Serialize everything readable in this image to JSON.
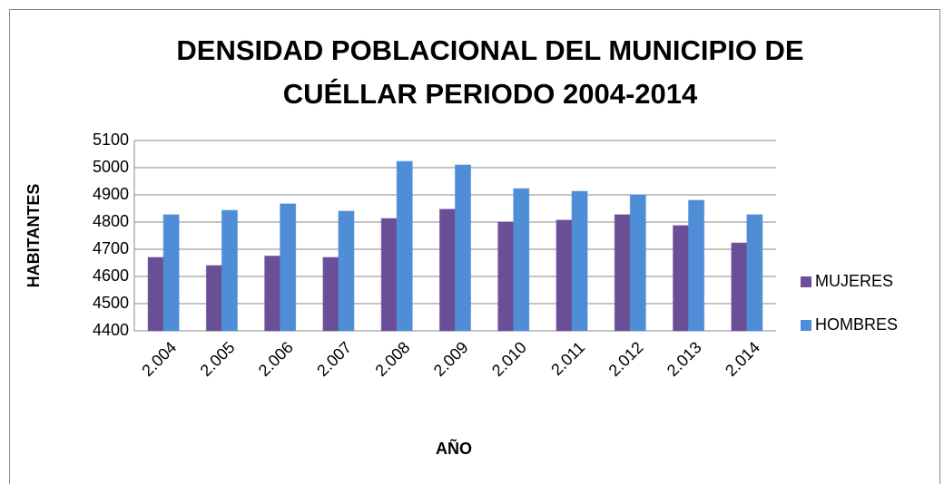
{
  "chart_data": {
    "type": "bar",
    "title": [
      "DENSIDAD POBLACIONAL DEL MUNICIPIO DE",
      "CUÉLLAR PERIODO 2004-2014"
    ],
    "x_label": "AÑO",
    "y_label": "HABITANTES",
    "categories": [
      "2.004",
      "2.005",
      "2.006",
      "2.007",
      "2.008",
      "2.009",
      "2.010",
      "2.011",
      "2.012",
      "2.013",
      "2.014"
    ],
    "series": [
      {
        "name": "MUJERES",
        "color": "#6b4f96",
        "values": [
          4670,
          4640,
          4675,
          4670,
          4813,
          4847,
          4800,
          4807,
          4827,
          4787,
          4723
        ]
      },
      {
        "name": "HOMBRES",
        "color": "#4f8ed6",
        "values": [
          4827,
          4843,
          4867,
          4840,
          5023,
          5010,
          4923,
          4913,
          4900,
          4880,
          4827
        ]
      }
    ],
    "ylim": [
      4400,
      5100
    ],
    "yticks": [
      4400,
      4500,
      4600,
      4700,
      4800,
      4900,
      5000,
      5100
    ],
    "grid": true,
    "legend": "right"
  }
}
